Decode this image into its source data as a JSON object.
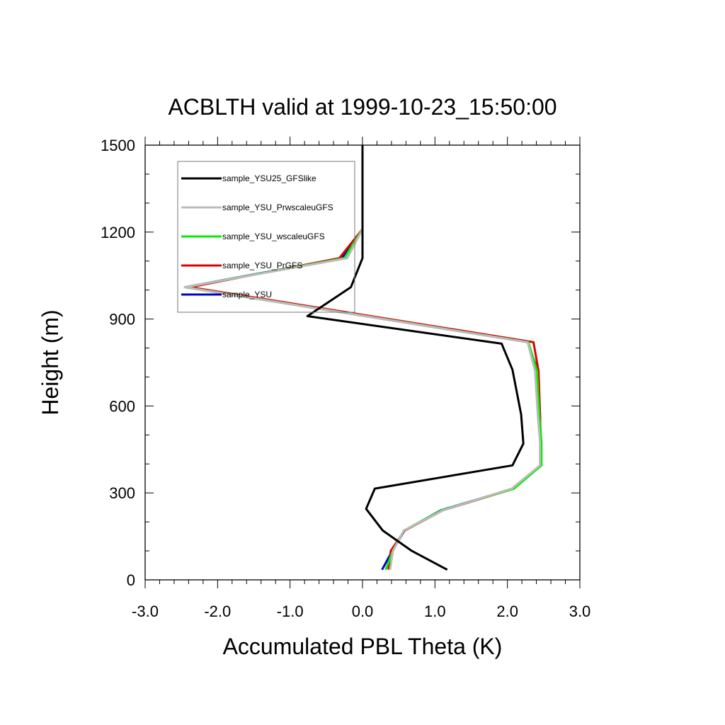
{
  "chart_data": {
    "type": "line",
    "title": "ACBLTH valid at 1999-10-23_15:50:00",
    "xlabel": "Accumulated PBL Theta (K)",
    "ylabel": "Height (m)",
    "xlim": [
      -3.0,
      3.0
    ],
    "ylim": [
      0,
      1500
    ],
    "x_ticks": [
      -3.0,
      -2.0,
      -1.0,
      0.0,
      1.0,
      2.0,
      3.0
    ],
    "x_tick_labels": [
      "-3.0",
      "-2.0",
      "-1.0",
      "0.0",
      "1.0",
      "2.0",
      "3.0"
    ],
    "y_ticks": [
      0,
      300,
      600,
      900,
      1200,
      1500
    ],
    "y_tick_labels": [
      "0",
      "300",
      "600",
      "900",
      "1200",
      "1500"
    ],
    "grid": false,
    "legend_position": "top-left",
    "series": [
      {
        "name": "sample_YSU",
        "color": "#0000cc",
        "x": [
          0.27,
          0.41,
          0.58,
          1.08,
          2.08,
          2.46,
          2.46,
          2.45,
          2.42,
          2.28,
          -2.45,
          -0.28,
          0.0,
          0.0
        ],
        "y": [
          35,
          100,
          170,
          240,
          315,
          395,
          475,
          570,
          720,
          820,
          1010,
          1110,
          1210,
          1300
        ]
      },
      {
        "name": "sample_YSU_PrGFS",
        "color": "#dd0000",
        "x": [
          0.36,
          0.39,
          0.58,
          1.11,
          2.09,
          2.46,
          2.46,
          2.45,
          2.43,
          2.36,
          -2.38,
          -0.32,
          0.0,
          0.0
        ],
        "y": [
          35,
          100,
          170,
          240,
          315,
          395,
          475,
          570,
          720,
          820,
          1010,
          1110,
          1210,
          1300
        ]
      },
      {
        "name": "sample_YSU_wscaleuGFS",
        "color": "#00ee00",
        "x": [
          0.32,
          0.42,
          0.57,
          1.09,
          2.09,
          2.47,
          2.47,
          2.44,
          2.41,
          2.29,
          -2.45,
          -0.25,
          0.0,
          0.0
        ],
        "y": [
          35,
          100,
          170,
          240,
          315,
          395,
          475,
          570,
          720,
          820,
          1010,
          1110,
          1210,
          1300
        ]
      },
      {
        "name": "sample_YSU_PrwscaleuGFS",
        "color": "#bbbbbb",
        "x": [
          0.38,
          0.42,
          0.57,
          1.11,
          2.06,
          2.45,
          2.45,
          2.42,
          2.38,
          2.28,
          -2.45,
          -0.21,
          0.0,
          0.0
        ],
        "y": [
          35,
          100,
          170,
          240,
          315,
          395,
          475,
          570,
          720,
          820,
          1010,
          1110,
          1210,
          1300
        ]
      },
      {
        "name": "sample_YSU25_GFSlike",
        "color": "#000000",
        "x": [
          1.17,
          0.68,
          0.28,
          0.05,
          0.17,
          2.07,
          2.22,
          2.19,
          2.07,
          1.92,
          -0.76,
          -0.16,
          0.0,
          0.0,
          0.0
        ],
        "y": [
          35,
          100,
          170,
          245,
          315,
          395,
          470,
          570,
          725,
          815,
          910,
          1010,
          1110,
          1200,
          1500
        ]
      }
    ],
    "legend_order": [
      "sample_YSU25_GFSlike",
      "sample_YSU_PrwscaleuGFS",
      "sample_YSU_wscaleuGFS",
      "sample_YSU_PrGFS",
      "sample_YSU"
    ]
  }
}
